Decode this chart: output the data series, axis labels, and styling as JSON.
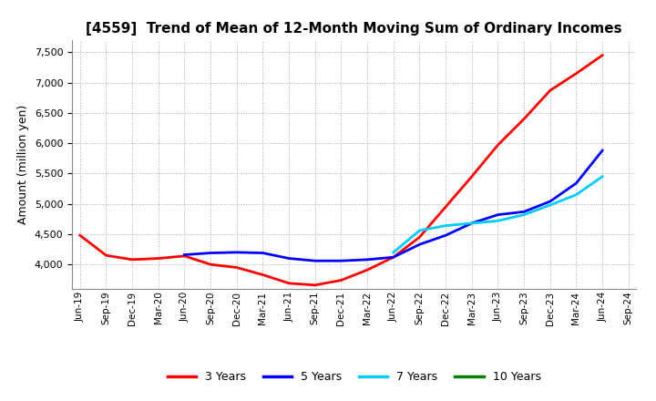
{
  "title": "[4559]  Trend of Mean of 12-Month Moving Sum of Ordinary Incomes",
  "ylabel": "Amount (million yen)",
  "ylim": [
    3600,
    7700
  ],
  "yticks": [
    4000,
    4500,
    5000,
    5500,
    6000,
    6500,
    7000,
    7500
  ],
  "background_color": "#ffffff",
  "plot_bg_color": "#ffffff",
  "grid_color": "#aaaaaa",
  "x_labels": [
    "Jun-19",
    "Sep-19",
    "Dec-19",
    "Mar-20",
    "Jun-20",
    "Sep-20",
    "Dec-20",
    "Mar-21",
    "Jun-21",
    "Sep-21",
    "Dec-21",
    "Mar-22",
    "Jun-22",
    "Sep-22",
    "Dec-22",
    "Mar-23",
    "Jun-23",
    "Sep-23",
    "Dec-23",
    "Mar-24",
    "Jun-24",
    "Sep-24"
  ],
  "series": {
    "3 Years": {
      "color": "#ff0000",
      "values": [
        4480,
        4150,
        4080,
        4100,
        4140,
        4000,
        3950,
        3830,
        3690,
        3660,
        3740,
        3910,
        4120,
        4450,
        4950,
        5450,
        5970,
        6400,
        6870,
        7150,
        7450,
        null
      ]
    },
    "5 Years": {
      "color": "#0000ff",
      "values": [
        null,
        null,
        null,
        null,
        4160,
        4190,
        4200,
        4190,
        4100,
        4060,
        4060,
        4080,
        4120,
        4330,
        4480,
        4680,
        4820,
        4870,
        5040,
        5340,
        5880,
        null
      ]
    },
    "7 Years": {
      "color": "#00ccff",
      "values": [
        null,
        null,
        null,
        null,
        null,
        null,
        null,
        null,
        null,
        null,
        null,
        null,
        4200,
        4560,
        4640,
        4680,
        4720,
        4820,
        4980,
        5150,
        5450,
        null
      ]
    },
    "10 Years": {
      "color": "#008000",
      "values": [
        null,
        null,
        null,
        null,
        null,
        null,
        null,
        null,
        null,
        null,
        null,
        null,
        null,
        null,
        null,
        null,
        null,
        null,
        null,
        null,
        null,
        null
      ]
    }
  },
  "legend_labels": [
    "3 Years",
    "5 Years",
    "7 Years",
    "10 Years"
  ],
  "legend_colors": [
    "#ff0000",
    "#0000ff",
    "#00ccff",
    "#008000"
  ],
  "title_fontsize": 11,
  "ylabel_fontsize": 9,
  "tick_fontsize": 8,
  "legend_fontsize": 9,
  "linewidth": 2.0
}
